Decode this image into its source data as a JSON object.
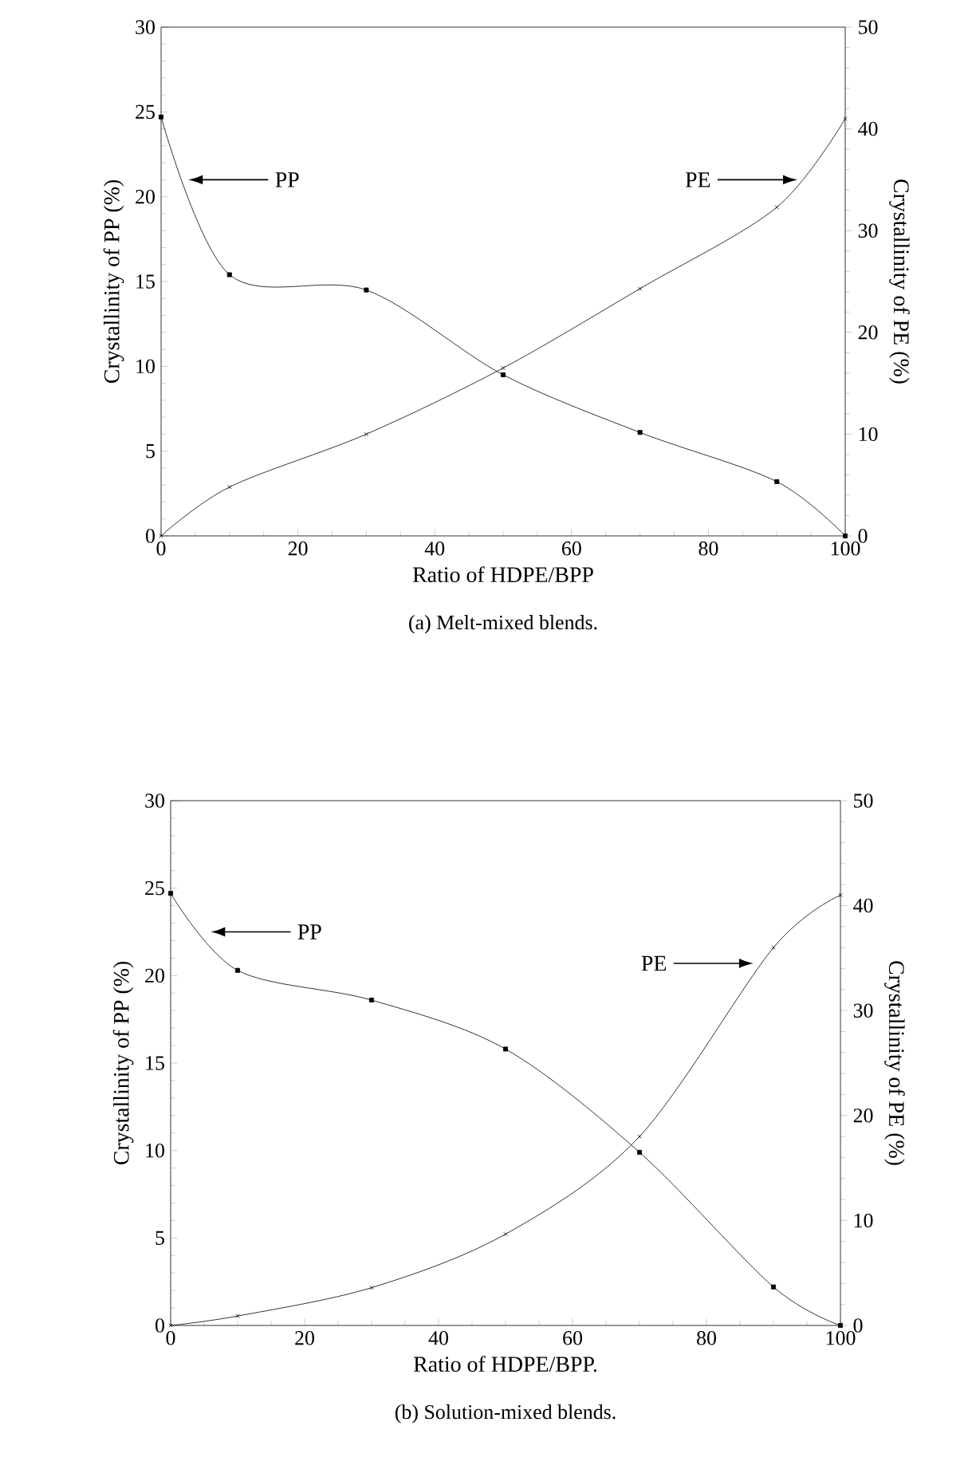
{
  "chart_data": [
    {
      "type": "line",
      "title": "(a) Melt-mixed blends.",
      "xlabel": "Ratio of HDPE/BPP",
      "ylabel": "Crystallinity of PP (%)",
      "y2label": "Crystallinity of PE (%)",
      "x": [
        0,
        10,
        30,
        50,
        70,
        90,
        100
      ],
      "xlim": [
        0,
        100
      ],
      "xticks": [
        0,
        20,
        40,
        60,
        80,
        100
      ],
      "ylim": [
        0,
        30
      ],
      "yticks": [
        0,
        5,
        10,
        15,
        20,
        25,
        30
      ],
      "y2lim": [
        0,
        50
      ],
      "y2ticks": [
        0,
        10,
        20,
        30,
        40,
        50
      ],
      "grid": false,
      "series": [
        {
          "color": "#000000",
          "marker": "square",
          "values": [
            24.7,
            15.4,
            14.5,
            9.5,
            6.1,
            3.2,
            0
          ]
        },
        {
          "color": "#000000",
          "marker": "cross",
          "axis": "y2",
          "values": [
            0,
            4.8,
            10,
            16.5,
            24.3,
            32.3,
            41
          ]
        }
      ],
      "annotations": [
        "PP",
        "PE"
      ]
    },
    {
      "type": "line",
      "title": "(b) Solution-mixed blends.",
      "xlabel": "Ratio of HDPE/BPP.",
      "ylabel": "Crystallinity of PP (%)",
      "y2label": "Crystallinity of PE (%)",
      "x": [
        0,
        10,
        30,
        50,
        70,
        90,
        100
      ],
      "xlim": [
        0,
        100
      ],
      "xticks": [
        0,
        20,
        40,
        60,
        80,
        100
      ],
      "ylim": [
        0,
        30
      ],
      "yticks": [
        0,
        5,
        10,
        15,
        20,
        25,
        30
      ],
      "y2lim": [
        0,
        50
      ],
      "y2ticks": [
        0,
        10,
        20,
        30,
        40,
        50
      ],
      "grid": false,
      "series": [
        {
          "color": "#000000",
          "marker": "square",
          "values": [
            24.7,
            20.3,
            18.6,
            15.8,
            9.9,
            2.2,
            0
          ]
        },
        {
          "color": "#000000",
          "marker": "cross",
          "axis": "y2",
          "values": [
            0,
            0.9,
            3.6,
            8.7,
            18,
            36,
            41
          ]
        }
      ],
      "annotations": [
        "PP",
        "PE"
      ]
    }
  ]
}
